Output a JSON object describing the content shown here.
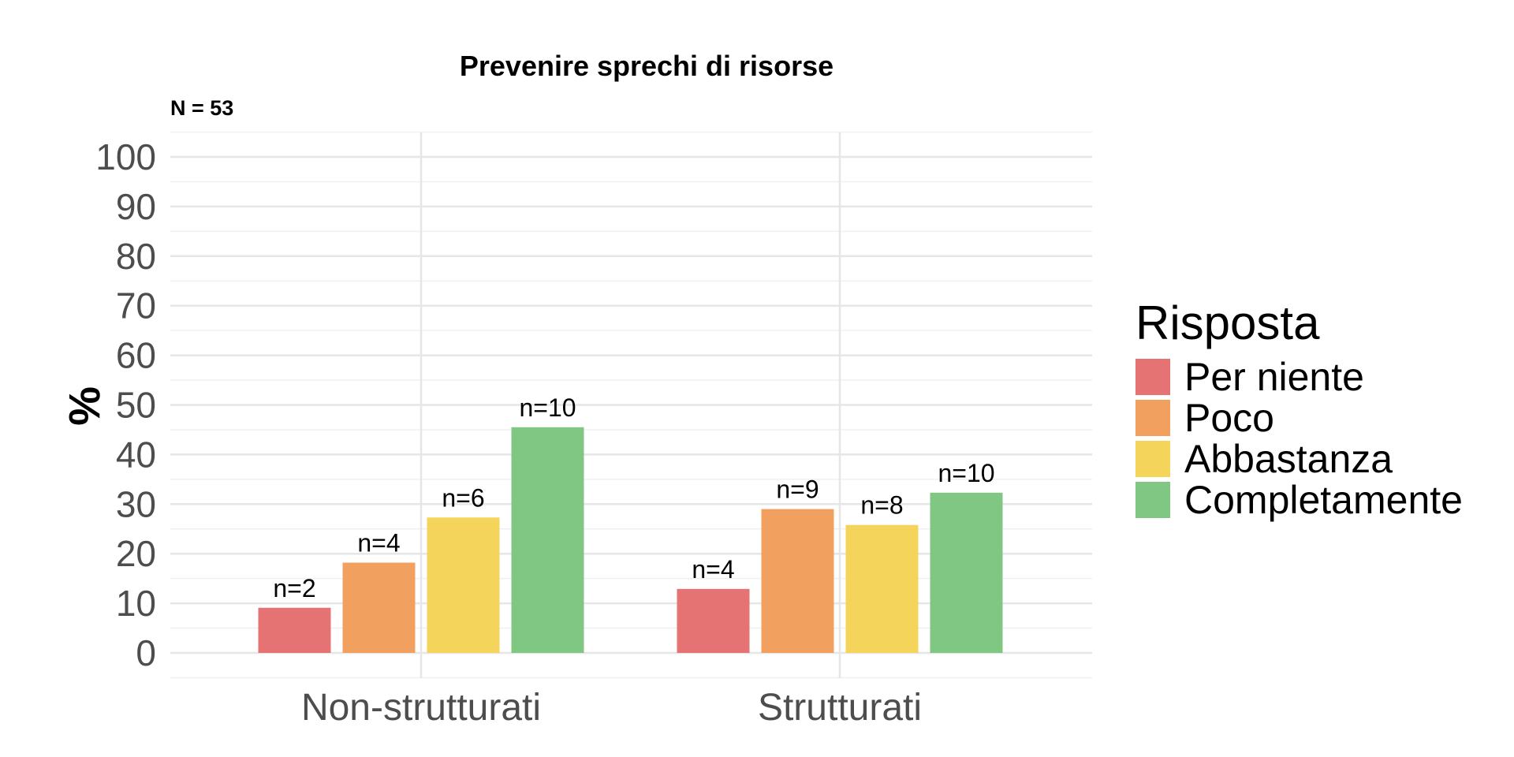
{
  "chart_data": {
    "type": "bar",
    "title": "Prevenire sprechi di risorse",
    "subtitle": "N = 53",
    "xlabel": "",
    "ylabel": "%",
    "ylim": [
      0,
      100
    ],
    "yticks": [
      0,
      10,
      20,
      30,
      40,
      50,
      60,
      70,
      80,
      90,
      100
    ],
    "categories": [
      "Non-strutturati",
      "Strutturati"
    ],
    "legend": {
      "title": "Risposta",
      "position": "right"
    },
    "grid": true,
    "series": [
      {
        "name": "Per niente",
        "color": "#E57373",
        "values": [
          9.1,
          12.9
        ],
        "labels": [
          "n=2",
          "n=4"
        ]
      },
      {
        "name": "Poco",
        "color": "#F2A05F",
        "values": [
          18.2,
          29.0
        ],
        "labels": [
          "n=4",
          "n=9"
        ]
      },
      {
        "name": "Abbastanza",
        "color": "#F5D45C",
        "values": [
          27.3,
          25.8
        ],
        "labels": [
          "n=6",
          "n=8"
        ]
      },
      {
        "name": "Completamente",
        "color": "#81C784",
        "values": [
          45.5,
          32.3
        ],
        "labels": [
          "n=10",
          "n=10"
        ]
      }
    ]
  }
}
